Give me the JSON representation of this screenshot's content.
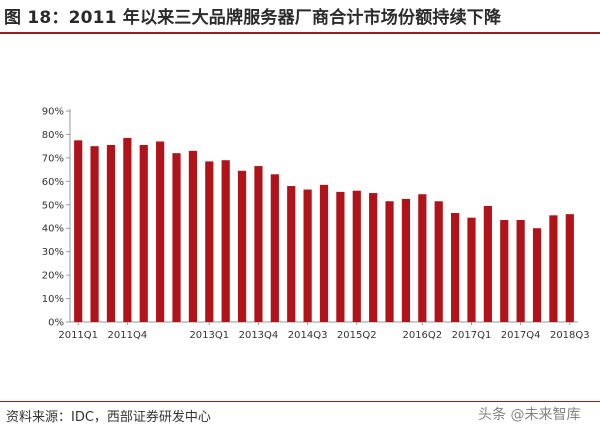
{
  "header": {
    "title": "图 18：2011 年以来三大品牌服务器厂商合计市场份额持续下降"
  },
  "footer": {
    "source": "资料来源：IDC，西部证券研发中心",
    "watermark": "头条 @未来智库"
  },
  "colors": {
    "bar": "#b0141a",
    "accent_line": "#9a1b1b"
  },
  "chart_data": {
    "type": "bar",
    "title": "",
    "xlabel": "",
    "ylabel": "",
    "ylim": [
      0,
      90
    ],
    "y_ticks": [
      "0%",
      "10%",
      "20%",
      "30%",
      "40%",
      "50%",
      "60%",
      "70%",
      "80%",
      "90%"
    ],
    "grid": false,
    "legend": "none",
    "categories": [
      "2011Q1",
      "2011Q2",
      "2011Q3",
      "2011Q4",
      "2012Q1",
      "2012Q2",
      "2012Q3",
      "2012Q4",
      "2013Q1",
      "2013Q2",
      "2013Q3",
      "2013Q4",
      "2014Q1",
      "2014Q2",
      "2014Q3",
      "2014Q4",
      "2015Q1",
      "2015Q2",
      "2015Q3",
      "2015Q4",
      "2016Q1",
      "2016Q2",
      "2016Q3",
      "2016Q4",
      "2017Q1",
      "2017Q2",
      "2017Q3",
      "2017Q4",
      "2018Q1",
      "2018Q2",
      "2018Q3"
    ],
    "x_tick_labels_shown": [
      "2011Q1",
      "2011Q4",
      "2013Q1",
      "2013Q4",
      "2014Q3",
      "2015Q2",
      "2016Q2",
      "2017Q1",
      "2017Q4",
      "2018Q3"
    ],
    "x_tick_label_indices": [
      0,
      3,
      8,
      11,
      14,
      17,
      21,
      24,
      27,
      30
    ],
    "values": [
      77.5,
      75,
      75.5,
      78.5,
      75.5,
      77,
      72,
      73,
      68.5,
      69,
      64.5,
      66.5,
      63,
      58,
      56.5,
      58.5,
      55.5,
      56,
      55,
      51.5,
      52.5,
      54.5,
      51.5,
      46.5,
      44.5,
      49.5,
      43.5,
      43.5,
      40,
      45.5,
      46
    ]
  }
}
